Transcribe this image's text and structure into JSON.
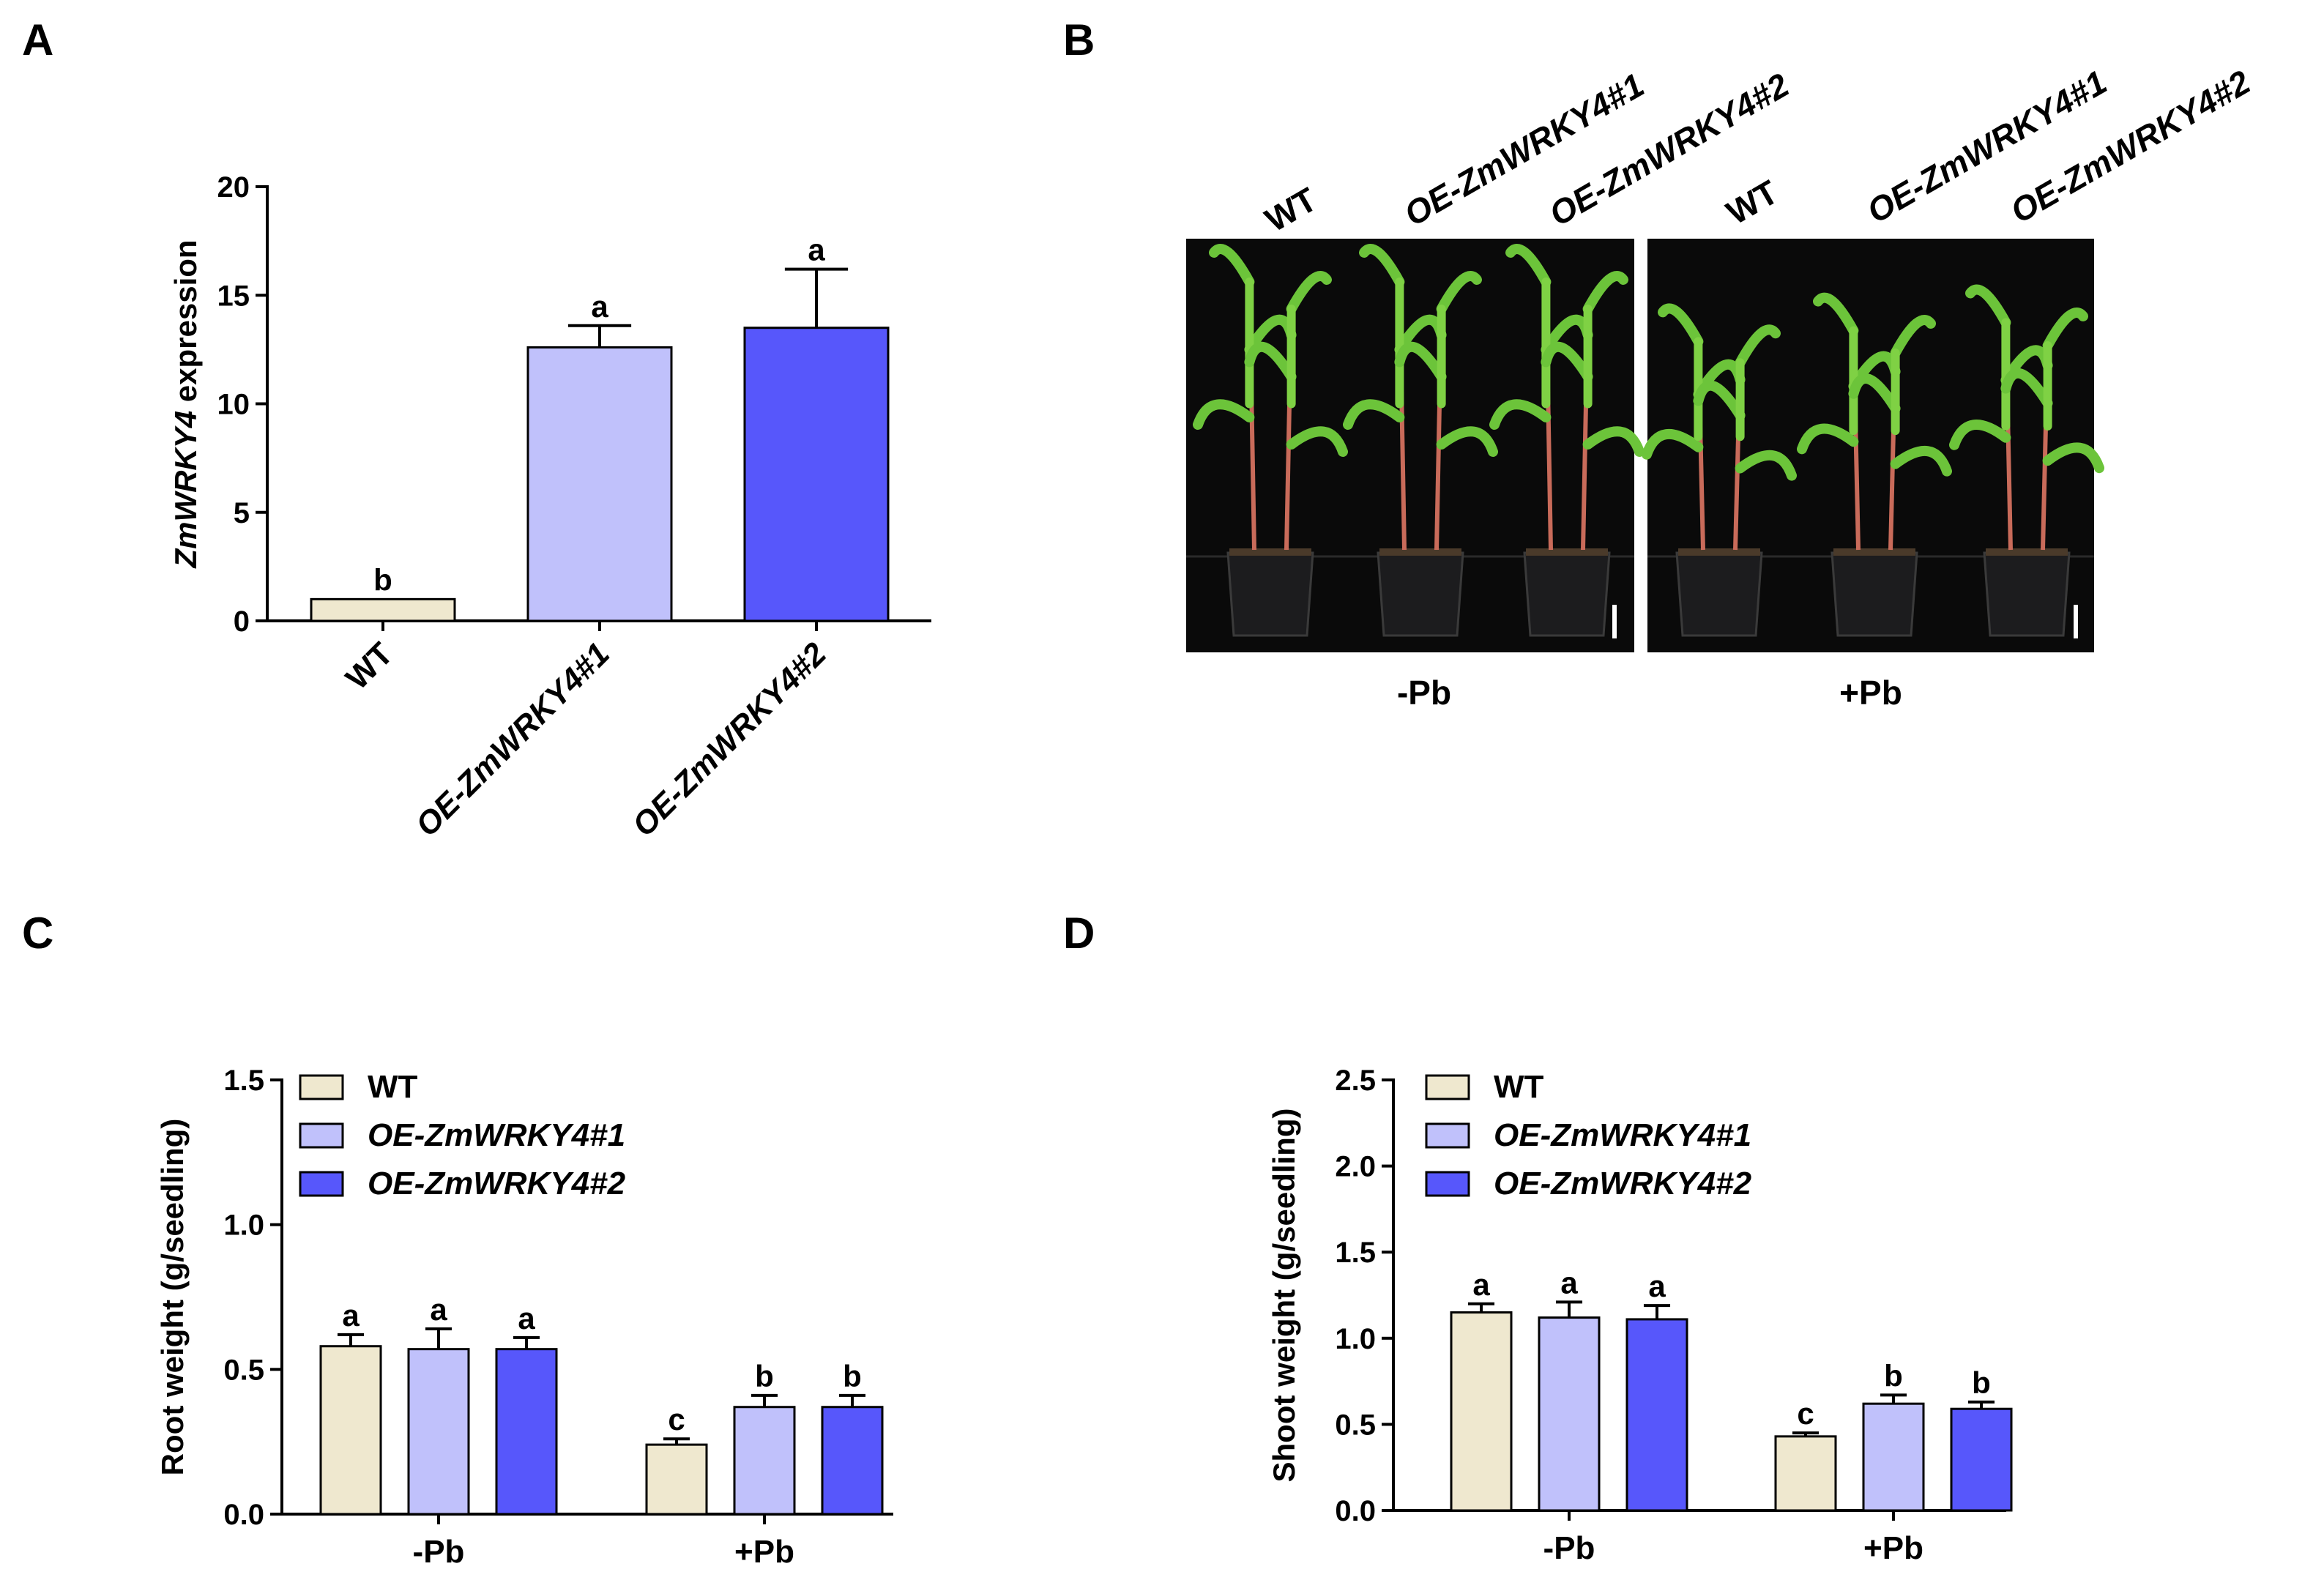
{
  "panels": {
    "a": "A",
    "b": "B",
    "c": "C",
    "d": "D"
  },
  "colors": {
    "WT": "#efe8cf",
    "OE1": "#c0c1fb",
    "OE2": "#5757fb",
    "axis": "#000000",
    "photo_bg": "#0a0a0a"
  },
  "photo": {
    "labels": [
      "WT",
      "OE-ZmWRKY4#1",
      "OE-ZmWRKY4#2",
      "WT",
      "OE-ZmWRKY4#1",
      "OE-ZmWRKY4#2"
    ],
    "treatments": [
      "-Pb",
      "+Pb"
    ]
  },
  "chart_data": [
    {
      "id": "A",
      "type": "bar",
      "categories": [
        "WT",
        "OE-ZmWRKY4#1",
        "OE-ZmWRKY4#2"
      ],
      "values": [
        1.0,
        12.6,
        13.5
      ],
      "errors": [
        0,
        1.0,
        2.7
      ],
      "significance": [
        "b",
        "a",
        "a"
      ],
      "ylabel_italic": "ZmWRKY4",
      "ylabel_rest": " expression",
      "ylim": [
        0,
        20
      ],
      "yticks": [
        "0",
        "5",
        "10",
        "15",
        "20"
      ]
    },
    {
      "id": "C",
      "type": "bar",
      "categories": [
        "-Pb",
        "+Pb"
      ],
      "series": [
        {
          "name": "WT",
          "values": [
            0.58,
            0.24
          ],
          "errors": [
            0.04,
            0.02
          ],
          "significance": [
            "a",
            "c"
          ]
        },
        {
          "name": "OE-ZmWRKY4#1",
          "values": [
            0.57,
            0.37
          ],
          "errors": [
            0.07,
            0.04
          ],
          "significance": [
            "a",
            "b"
          ]
        },
        {
          "name": "OE-ZmWRKY4#2",
          "values": [
            0.57,
            0.37
          ],
          "errors": [
            0.04,
            0.04
          ],
          "significance": [
            "a",
            "b"
          ]
        }
      ],
      "ylabel": "Root weight (g/seedling)",
      "ylim": [
        0,
        1.5
      ],
      "yticks": [
        "0.0",
        "0.5",
        "1.0",
        "1.5"
      ],
      "legend_position": "top-left"
    },
    {
      "id": "D",
      "type": "bar",
      "categories": [
        "-Pb",
        "+Pb"
      ],
      "series": [
        {
          "name": "WT",
          "values": [
            1.15,
            0.43
          ],
          "errors": [
            0.05,
            0.02
          ],
          "significance": [
            "a",
            "c"
          ]
        },
        {
          "name": "OE-ZmWRKY4#1",
          "values": [
            1.12,
            0.62
          ],
          "errors": [
            0.09,
            0.05
          ],
          "significance": [
            "a",
            "b"
          ]
        },
        {
          "name": "OE-ZmWRKY4#2",
          "values": [
            1.11,
            0.59
          ],
          "errors": [
            0.08,
            0.04
          ],
          "significance": [
            "a",
            "b"
          ]
        }
      ],
      "ylabel": "Shoot weight (g/seedling)",
      "ylim": [
        0,
        2.5
      ],
      "yticks": [
        "0.0",
        "0.5",
        "1.0",
        "1.5",
        "2.0",
        "2.5"
      ],
      "legend_position": "top-left"
    }
  ]
}
